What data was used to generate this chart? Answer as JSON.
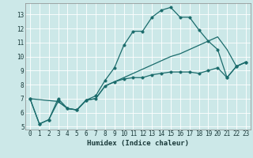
{
  "xlabel": "Humidex (Indice chaleur)",
  "bg_color": "#cce8e8",
  "grid_color": "#aad4d4",
  "line_color": "#1a6b6b",
  "xlim": [
    -0.5,
    23.5
  ],
  "ylim": [
    4.8,
    13.8
  ],
  "yticks": [
    5,
    6,
    7,
    8,
    9,
    10,
    11,
    12,
    13
  ],
  "xticks": [
    0,
    1,
    2,
    3,
    4,
    5,
    6,
    7,
    8,
    9,
    10,
    11,
    12,
    13,
    14,
    15,
    16,
    17,
    18,
    19,
    20,
    21,
    22,
    23
  ],
  "line1_x": [
    0,
    1,
    2,
    3,
    4,
    5,
    6,
    7,
    8,
    9,
    10,
    11,
    12,
    13,
    14,
    15,
    16,
    17,
    18,
    19,
    20,
    21,
    22,
    23
  ],
  "line1_y": [
    7.0,
    5.2,
    5.5,
    7.0,
    6.3,
    6.2,
    6.9,
    7.2,
    8.3,
    9.2,
    10.8,
    11.8,
    11.8,
    12.8,
    13.3,
    13.5,
    12.8,
    12.8,
    11.9,
    11.1,
    10.5,
    8.5,
    9.3,
    9.6
  ],
  "line2_x": [
    0,
    1,
    2,
    3,
    4,
    5,
    6,
    7,
    8,
    9,
    10,
    11,
    12,
    13,
    14,
    15,
    16,
    17,
    18,
    19,
    20,
    21,
    22,
    23
  ],
  "line2_y": [
    7.0,
    5.2,
    5.5,
    6.8,
    6.3,
    6.2,
    6.9,
    7.0,
    7.9,
    8.2,
    8.4,
    8.5,
    8.5,
    8.7,
    8.8,
    8.9,
    8.9,
    8.9,
    8.8,
    9.0,
    9.2,
    8.5,
    9.3,
    9.6
  ],
  "line3_x": [
    0,
    3,
    4,
    5,
    6,
    7,
    8,
    9,
    10,
    11,
    12,
    13,
    14,
    15,
    16,
    17,
    18,
    19,
    20,
    21,
    22,
    23
  ],
  "line3_y": [
    7.0,
    6.8,
    6.3,
    6.2,
    6.9,
    7.0,
    7.9,
    8.2,
    8.5,
    8.8,
    9.1,
    9.4,
    9.7,
    10.0,
    10.2,
    10.5,
    10.8,
    11.1,
    11.4,
    10.5,
    9.3,
    9.6
  ],
  "marker_size": 2.5,
  "line_width": 0.9,
  "tick_fontsize": 5.5,
  "xlabel_fontsize": 6.5
}
